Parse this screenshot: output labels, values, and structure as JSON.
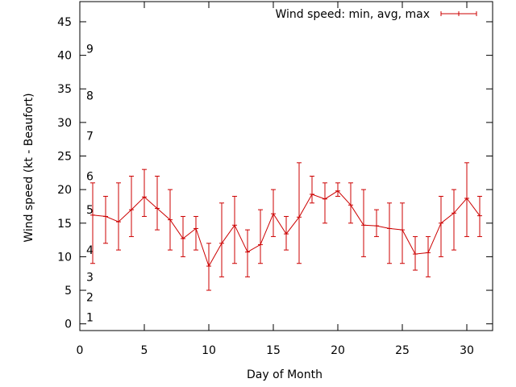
{
  "chart_data": {
    "type": "line",
    "title": "",
    "xlabel": "Day of Month",
    "ylabel": "Wind speed (kt - Beaufort)",
    "xlim": [
      0,
      32
    ],
    "ylim": [
      -1,
      48
    ],
    "x_ticks": [
      0,
      5,
      10,
      15,
      20,
      25,
      30
    ],
    "y_ticks": [
      0,
      5,
      10,
      15,
      20,
      25,
      30,
      35,
      40,
      45
    ],
    "grid": false,
    "legend_position": "top-right",
    "beaufort_labels": [
      {
        "label": "1",
        "value": 1
      },
      {
        "label": "2",
        "value": 4
      },
      {
        "label": "3",
        "value": 7
      },
      {
        "label": "4",
        "value": 11
      },
      {
        "label": "5",
        "value": 17
      },
      {
        "label": "6",
        "value": 22
      },
      {
        "label": "7",
        "value": 28
      },
      {
        "label": "8",
        "value": 34
      },
      {
        "label": "9",
        "value": 41
      }
    ],
    "series": [
      {
        "name": "Wind speed: min, avg, max",
        "color": "#cc0000",
        "x": [
          1,
          2,
          3,
          4,
          5,
          6,
          7,
          8,
          9,
          10,
          11,
          12,
          13,
          14,
          15,
          16,
          17,
          18,
          19,
          20,
          21,
          22,
          23,
          24,
          25,
          26,
          27,
          28,
          29,
          30,
          31
        ],
        "avg": [
          16.2,
          16,
          15.2,
          17,
          18.9,
          17.2,
          15.5,
          12.7,
          14.2,
          8.6,
          12,
          14.7,
          10.7,
          11.8,
          16.4,
          13.4,
          15.9,
          19.3,
          18.6,
          19.8,
          17.7,
          14.7,
          14.6,
          14.2,
          14,
          10.4,
          10.6,
          15,
          16.5,
          18.7,
          16.1
        ],
        "min": [
          9,
          12,
          11,
          13,
          16,
          14,
          11,
          10,
          11,
          5,
          7,
          9,
          7,
          9,
          13,
          11,
          9,
          18,
          15,
          19,
          15,
          10,
          13,
          9,
          9,
          8,
          7,
          10,
          11,
          13,
          13
        ],
        "max": [
          21,
          19,
          21,
          22,
          23,
          22,
          20,
          16,
          16,
          12,
          18,
          19,
          14,
          17,
          20,
          16,
          24,
          22,
          21,
          21,
          21,
          20,
          17,
          18,
          18,
          13,
          13,
          19,
          20,
          24,
          19
        ]
      }
    ]
  }
}
